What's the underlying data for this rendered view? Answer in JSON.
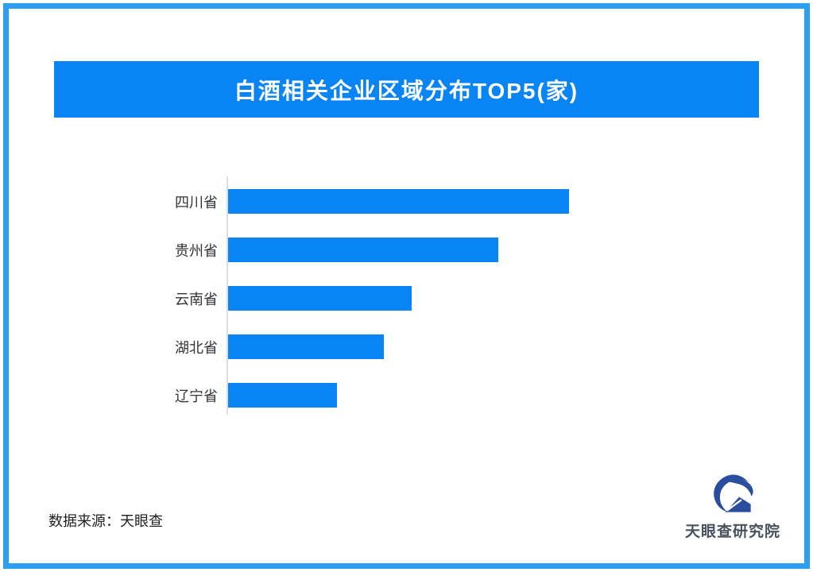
{
  "frame": {
    "border_color": "#2d9ff3"
  },
  "header": {
    "title": "白酒相关企业区域分布TOP5(家)",
    "bg_color": "#0984f4",
    "text_color": "#ffffff"
  },
  "chart_data": {
    "type": "bar",
    "orientation": "horizontal",
    "title": "白酒相关企业区域分布TOP5(家)",
    "categories": [
      "四川省",
      "贵州省",
      "云南省",
      "湖北省",
      "辽宁省"
    ],
    "values": [
      429,
      340,
      231,
      196,
      137
    ],
    "values_note": "no numeric axis or data labels shown; values are relative bar lengths (px)",
    "xlabel": "",
    "ylabel": "",
    "xlim": [
      0,
      460
    ],
    "grid": false,
    "legend": false,
    "bar_color": "#0984f4",
    "axis_line_color": "#dddddd",
    "label_color": "#333333"
  },
  "footer": {
    "source": "数据来源：天眼查"
  },
  "logo": {
    "text": "天眼查研究院",
    "icon": "tianyancha-emblem",
    "icon_color": "#2a4d9e",
    "text_color": "#47525e"
  }
}
